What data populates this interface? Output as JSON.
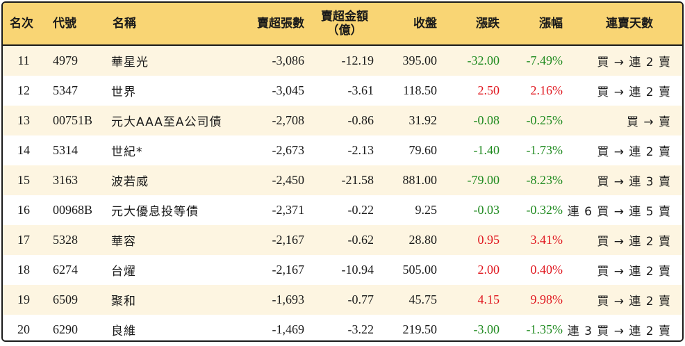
{
  "table": {
    "headers": {
      "rank": "名次",
      "code": "代號",
      "name": "名稱",
      "net_sell_lots": "賣超張數",
      "net_sell_amount_line1": "賣超金額",
      "net_sell_amount_line2": "（億）",
      "close": "收盤",
      "change": "漲跌",
      "change_pct": "漲幅",
      "streak": "連賣天數"
    },
    "rows": [
      {
        "rank": "11",
        "code": "4979",
        "name": "華星光",
        "lots": "-3,086",
        "amount": "-12.19",
        "close": "395.00",
        "change": "-32.00",
        "pct": "-7.49%",
        "dir": "down",
        "streak": "買 → 連 2 賣"
      },
      {
        "rank": "12",
        "code": "5347",
        "name": "世界",
        "lots": "-3,045",
        "amount": "-3.61",
        "close": "118.50",
        "change": "2.50",
        "pct": "2.16%",
        "dir": "up",
        "streak": "買 → 連 2 賣"
      },
      {
        "rank": "13",
        "code": "00751B",
        "name": "元大AAA至A公司債",
        "lots": "-2,708",
        "amount": "-0.86",
        "close": "31.92",
        "change": "-0.08",
        "pct": "-0.25%",
        "dir": "down",
        "streak": "買 → 賣"
      },
      {
        "rank": "14",
        "code": "5314",
        "name": "世紀*",
        "lots": "-2,673",
        "amount": "-2.13",
        "close": "79.60",
        "change": "-1.40",
        "pct": "-1.73%",
        "dir": "down",
        "streak": "買 → 連 2 賣"
      },
      {
        "rank": "15",
        "code": "3163",
        "name": "波若威",
        "lots": "-2,450",
        "amount": "-21.58",
        "close": "881.00",
        "change": "-79.00",
        "pct": "-8.23%",
        "dir": "down",
        "streak": "買 → 連 3 賣"
      },
      {
        "rank": "16",
        "code": "00968B",
        "name": "元大優息投等債",
        "lots": "-2,371",
        "amount": "-0.22",
        "close": "9.25",
        "change": "-0.03",
        "pct": "-0.32%",
        "dir": "down",
        "streak": "連 6 買 → 連 5 賣"
      },
      {
        "rank": "17",
        "code": "5328",
        "name": "華容",
        "lots": "-2,167",
        "amount": "-0.62",
        "close": "28.80",
        "change": "0.95",
        "pct": "3.41%",
        "dir": "up",
        "streak": "買 → 連 2 賣"
      },
      {
        "rank": "18",
        "code": "6274",
        "name": "台燿",
        "lots": "-2,167",
        "amount": "-10.94",
        "close": "505.00",
        "change": "2.00",
        "pct": "0.40%",
        "dir": "up",
        "streak": "買 → 連 2 賣"
      },
      {
        "rank": "19",
        "code": "6509",
        "name": "聚和",
        "lots": "-1,693",
        "amount": "-0.77",
        "close": "45.75",
        "change": "4.15",
        "pct": "9.98%",
        "dir": "up",
        "streak": "買 → 連 2 賣"
      },
      {
        "rank": "20",
        "code": "6290",
        "name": "良維",
        "lots": "-1,469",
        "amount": "-3.22",
        "close": "219.50",
        "change": "-3.00",
        "pct": "-1.35%",
        "dir": "down",
        "streak": "連 3 買 → 連 2 賣"
      }
    ]
  },
  "colors": {
    "header_bg": "#f9d574",
    "odd_row_bg": "#fdf5e1",
    "up": "#e0161e",
    "down": "#1f8a1f"
  }
}
